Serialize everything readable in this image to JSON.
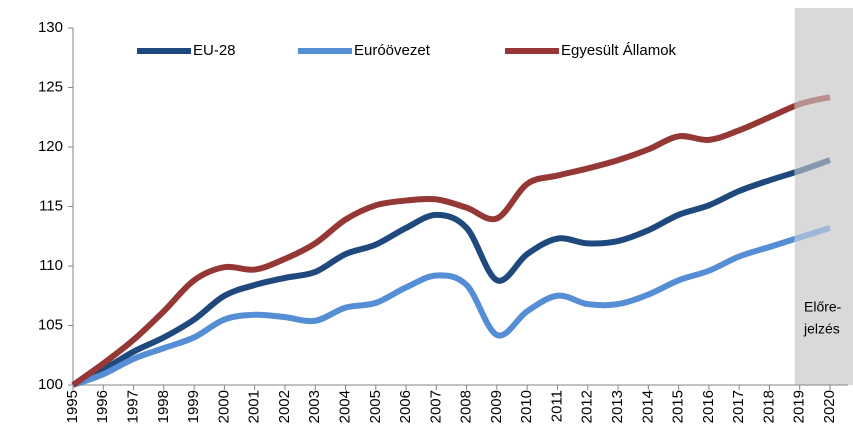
{
  "chart_data": {
    "type": "line",
    "categories": [
      "1995",
      "1996",
      "1997",
      "1998",
      "1999",
      "2000",
      "2001",
      "2002",
      "2003",
      "2004",
      "2005",
      "2006",
      "2007",
      "2008",
      "2009",
      "2010",
      "2011",
      "2012",
      "2013",
      "2014",
      "2015",
      "2016",
      "2017",
      "2018",
      "2019",
      "2020"
    ],
    "series": [
      {
        "name": "EU-28",
        "color": "#1f497d",
        "values": [
          100,
          101.3,
          102.8,
          104,
          105.5,
          107.5,
          108.4,
          109,
          109.5,
          111,
          111.8,
          113.2,
          114.3,
          113.2,
          108.8,
          111,
          112.3,
          111.9,
          112.1,
          113,
          114.3,
          115.1,
          116.3,
          117.2,
          118,
          118.9
        ]
      },
      {
        "name": "Euróövezet",
        "color": "#558ed5",
        "values": [
          100,
          100.9,
          102.2,
          103.1,
          104,
          105.5,
          105.9,
          105.7,
          105.4,
          106.5,
          106.9,
          108.2,
          109.2,
          108.4,
          104.2,
          106.2,
          107.5,
          106.8,
          106.8,
          107.6,
          108.8,
          109.6,
          110.8,
          111.6,
          112.4,
          113.2
        ]
      },
      {
        "name": "Egyesült Államok",
        "color": "#953735",
        "values": [
          100,
          101.8,
          103.8,
          106.2,
          108.8,
          109.9,
          109.7,
          110.6,
          111.9,
          113.9,
          115.1,
          115.5,
          115.6,
          114.9,
          114,
          116.9,
          117.6,
          118.2,
          118.9,
          119.8,
          120.9,
          120.6,
          121.4,
          122.5,
          123.6,
          124.2
        ]
      }
    ],
    "ylim": [
      100,
      130
    ],
    "yticks": [
      100,
      105,
      110,
      115,
      120,
      125,
      130
    ],
    "forecast_start": "2019",
    "forecast_label": [
      "Előre-",
      "jelzés"
    ]
  }
}
